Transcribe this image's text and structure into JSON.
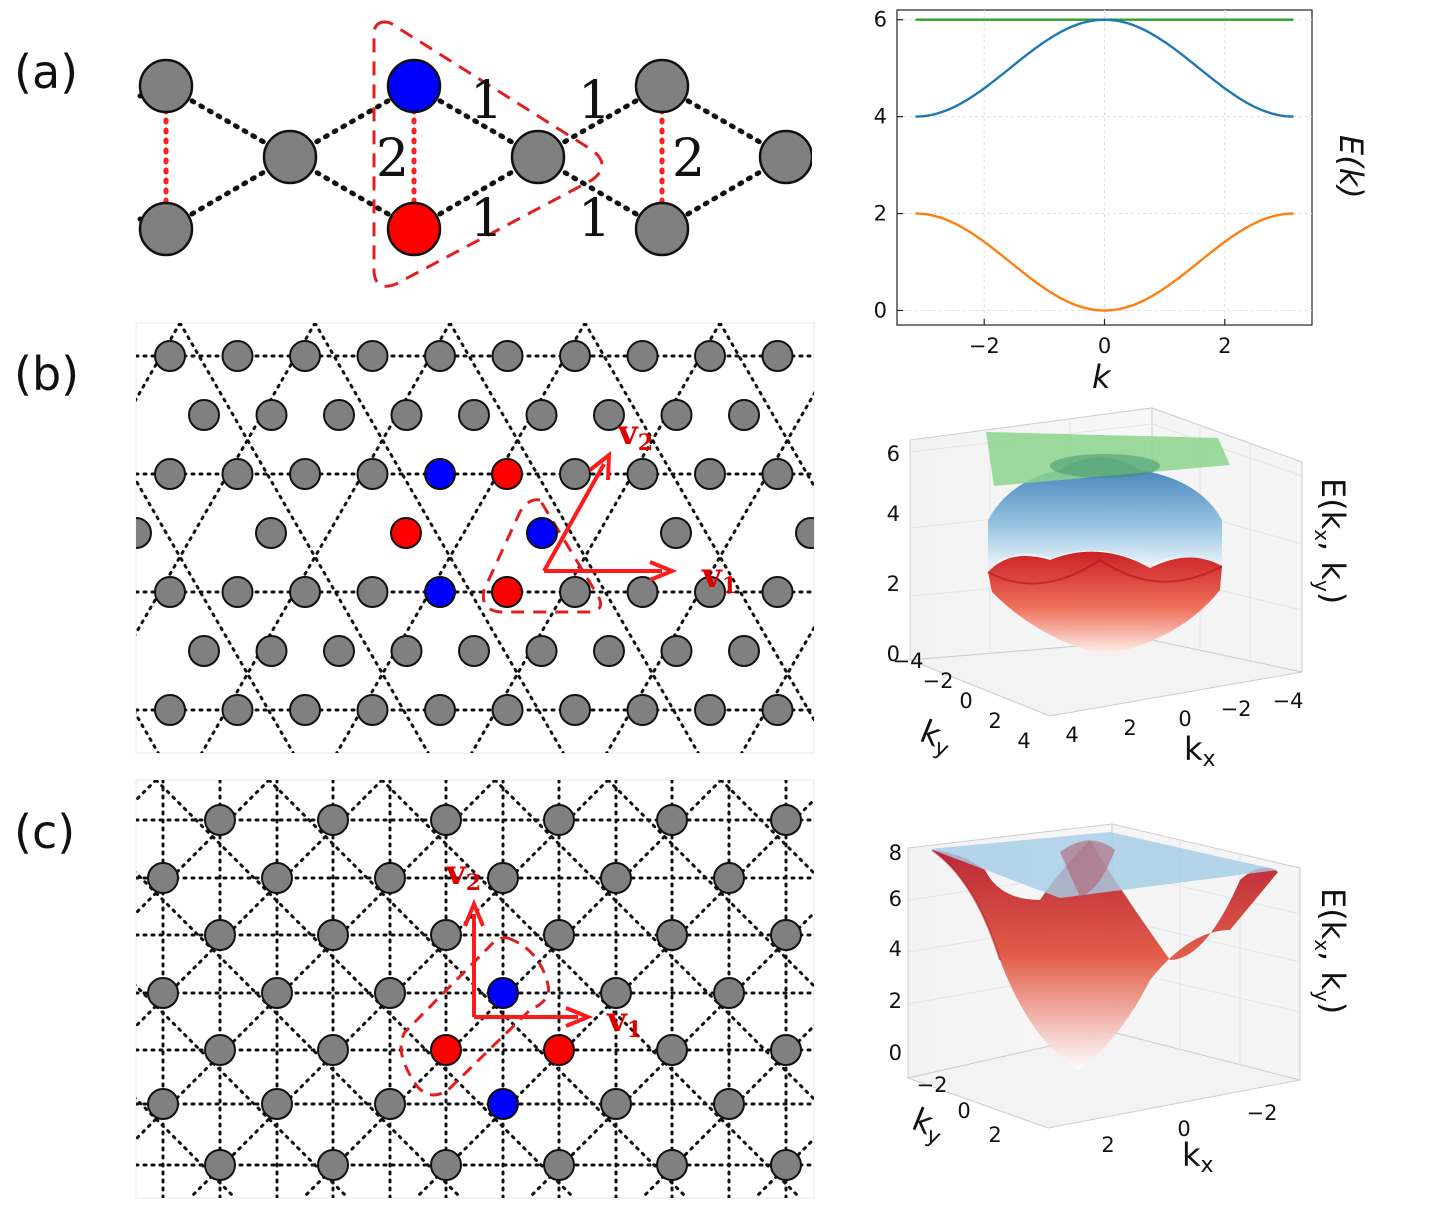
{
  "panels": [
    {
      "id": "a",
      "label": "(a)"
    },
    {
      "id": "b",
      "label": "(b)"
    },
    {
      "id": "c",
      "label": "(c)"
    }
  ],
  "chain": {
    "bond_labels": {
      "weak": "1",
      "strong": "2"
    },
    "colors": {
      "site": "#808080",
      "blue": "#0000ff",
      "red": "#ff0000",
      "intra": "#ff2020",
      "cell": "#e02020"
    }
  },
  "lattice_b": {
    "v1": "v",
    "v1_sub": "1",
    "v2": "v",
    "v2_sub": "2"
  },
  "lattice_c": {
    "v1": "v",
    "v1_sub": "1",
    "v2": "v",
    "v2_sub": "2"
  },
  "chart_data": [
    {
      "type": "line",
      "panel": "a",
      "xlabel": "k",
      "ylabel": "E(k)",
      "xlim": [
        -3.45,
        3.45
      ],
      "ylim": [
        -0.3,
        6.2
      ],
      "xticks": [
        -2,
        0,
        2
      ],
      "yticks": [
        0,
        2,
        4,
        6
      ],
      "grid": true,
      "x_range": [
        -3.14159,
        3.14159
      ],
      "series": [
        {
          "color": "#2ca02c",
          "points_k": [
            -3.14,
            -1.57,
            0,
            1.57,
            3.14
          ],
          "values": [
            6,
            6,
            6,
            6,
            6
          ]
        },
        {
          "color": "#1f77b4",
          "points_k": [
            -3.14,
            -1.57,
            0,
            1.57,
            3.14
          ],
          "values": [
            4,
            5,
            6,
            5,
            4
          ]
        },
        {
          "color": "#ff7f0e",
          "points_k": [
            -3.14,
            -1.57,
            0,
            1.57,
            3.14
          ],
          "values": [
            2,
            1,
            0,
            1,
            2
          ]
        }
      ]
    },
    {
      "type": "surface3d",
      "panel": "b",
      "zlabel": "E(k",
      "zlabel_sub1": "x",
      "zlabel_sep": ", k",
      "zlabel_sub2": "y",
      "zlabel_end": ")",
      "xlabel": "k",
      "xlabel_sub": "x",
      "ylabel": "k",
      "ylabel_sub": "y",
      "zticks": [
        0,
        2,
        4,
        6
      ],
      "xticks": [
        4,
        2,
        0,
        -2,
        -4
      ],
      "yticks": [
        -4,
        -2,
        0,
        2,
        4
      ],
      "surfaces": [
        {
          "color": "#7fc97f",
          "value": 6
        },
        {
          "color": "#2b7bba",
          "range": [
            3,
            6
          ]
        },
        {
          "color": "#d7301f",
          "range": [
            0,
            3
          ]
        }
      ]
    },
    {
      "type": "surface3d",
      "panel": "c",
      "zlabel": "E(k",
      "zlabel_sub1": "x",
      "zlabel_sep": ", k",
      "zlabel_sub2": "y",
      "zlabel_end": ")",
      "xlabel": "k",
      "xlabel_sub": "x",
      "ylabel": "k",
      "ylabel_sub": "y",
      "zticks": [
        0,
        2,
        4,
        6,
        8
      ],
      "xticks": [
        2,
        0,
        -2
      ],
      "yticks": [
        -2,
        0,
        2
      ],
      "surfaces": [
        {
          "color": "#9ecae1",
          "value": 8
        },
        {
          "color": "#d7301f",
          "range": [
            0,
            8
          ]
        }
      ]
    }
  ]
}
